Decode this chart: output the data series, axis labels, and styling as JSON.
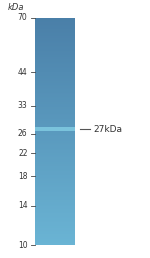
{
  "background_color": "#ffffff",
  "fig_width": 1.5,
  "fig_height": 2.58,
  "dpi": 100,
  "kda_label": "kDa",
  "marker_labels": [
    "70",
    "44",
    "33",
    "26",
    "22",
    "18",
    "14",
    "10"
  ],
  "marker_kda": [
    70,
    44,
    33,
    26,
    22,
    18,
    14,
    10
  ],
  "band_kda": 27,
  "band_label": "27kDa",
  "lane_color_top": "#4a7fa8",
  "lane_color_bottom": "#6ab4d4",
  "band_color": "#7ec8e0",
  "marker_text_color": "#333333",
  "kda_text_color": "#333333",
  "band_text_color": "#333333"
}
